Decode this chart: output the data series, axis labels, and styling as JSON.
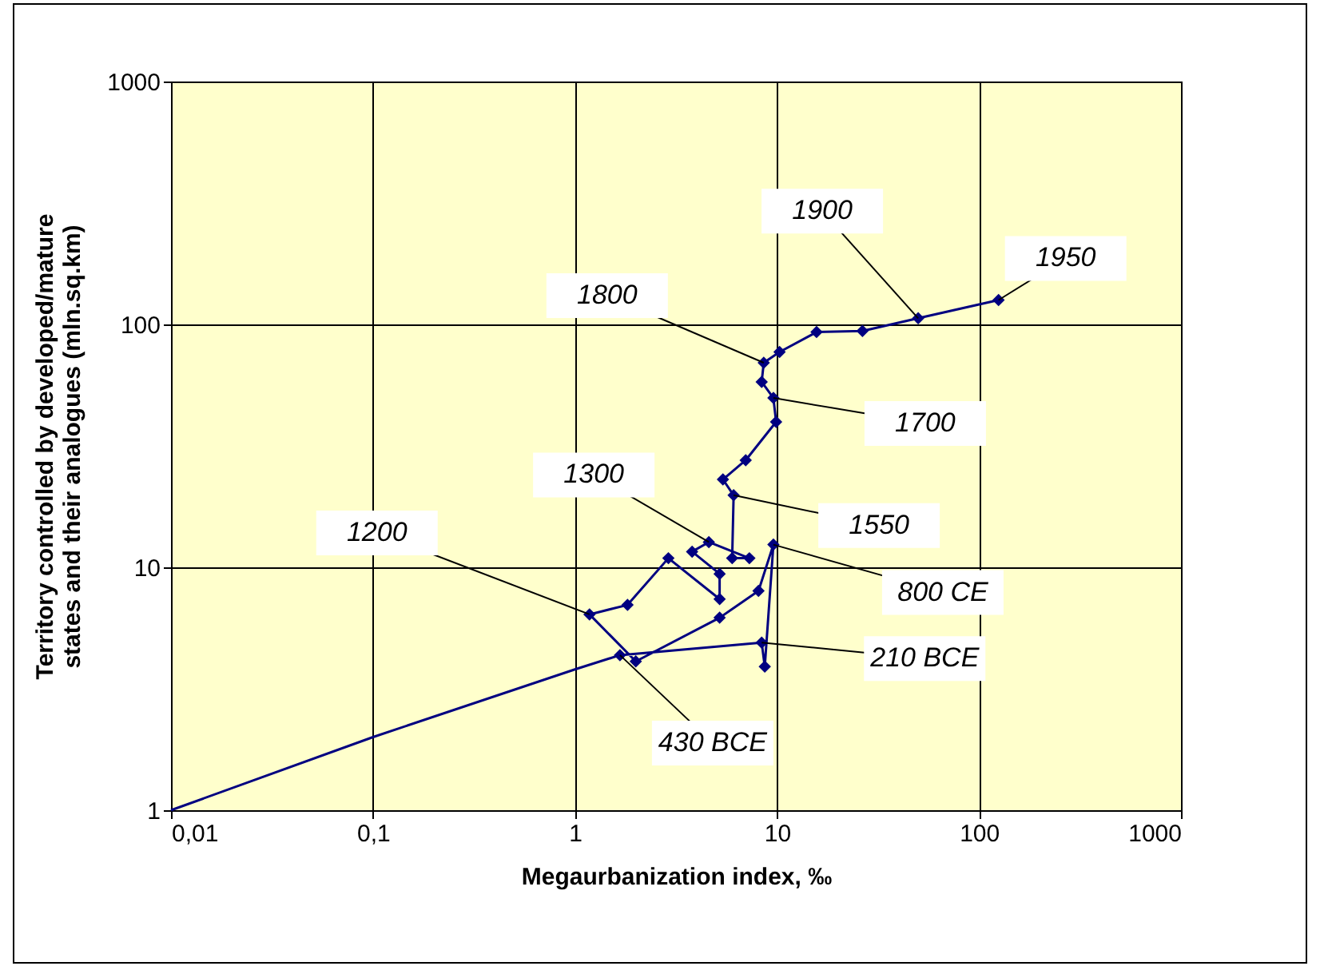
{
  "chart_data": {
    "type": "line",
    "xlabel": "Megaurbanization index, ‰",
    "ylabel": "Territory controlled by developed/mature\nstates and their analogues (mln.sq.km)",
    "log": "xy",
    "grid": true,
    "marker": "diamond",
    "xlim": [
      0.01,
      1000
    ],
    "xticks": [
      {
        "value": 0.01,
        "label": "0,01"
      },
      {
        "value": 0.1,
        "label": "0,1"
      },
      1,
      10,
      100,
      1000
    ],
    "ylim": [
      1,
      1000
    ],
    "yticks": [
      1,
      10,
      100,
      1000
    ],
    "series": [
      {
        "color": "#000080",
        "marker": "none",
        "x": [
          0.01,
          0.1,
          1,
          1.67
        ],
        "values": [
          1,
          2,
          3.8,
          4.35
        ]
      },
      {
        "color": "#000080",
        "x": [
          1.67,
          8.4,
          8.7,
          9.6,
          8.1,
          5.2,
          2.0,
          1.18,
          1.82,
          2.9,
          5.2,
          5.2,
          3.8,
          4.6,
          7.3,
          6.0,
          6.1,
          5.4,
          7.0,
          9.9,
          9.6,
          8.4,
          8.6,
          10.3,
          15.7,
          26.5,
          50,
          125
        ],
        "values": [
          4.35,
          4.9,
          3.9,
          12.4,
          8.0,
          6.2,
          4.1,
          6.4,
          7.0,
          10.9,
          7.4,
          9.4,
          11.6,
          12.7,
          10.9,
          10.9,
          19.8,
          23,
          27.6,
          39.7,
          49.8,
          58,
          69.5,
          77,
          93,
          94,
          106,
          126
        ]
      }
    ],
    "annotations": [
      {
        "text": "1950",
        "x": 125,
        "y": 126
      },
      {
        "text": "1900",
        "x": 50,
        "y": 106
      },
      {
        "text": "1800",
        "x": 8.6,
        "y": 69.5
      },
      {
        "text": "1700",
        "x": 9.6,
        "y": 49.8
      },
      {
        "text": "1550",
        "x": 6.1,
        "y": 19.8
      },
      {
        "text": "1300",
        "x": 4.6,
        "y": 12.7
      },
      {
        "text": "1200",
        "x": 1.18,
        "y": 6.4
      },
      {
        "text": "800 CE",
        "x": 9.6,
        "y": 12.4
      },
      {
        "text": "210 BCE",
        "x": 8.4,
        "y": 4.9
      },
      {
        "text": "430 BCE",
        "x": 1.67,
        "y": 4.35
      }
    ]
  }
}
